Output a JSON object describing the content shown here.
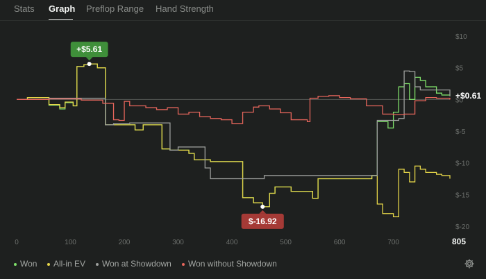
{
  "tabs": [
    {
      "label": "Stats"
    },
    {
      "label": "Graph"
    },
    {
      "label": "Preflop Range"
    },
    {
      "label": "Hand Strength"
    }
  ],
  "active_tab": "Graph",
  "legend": [
    {
      "label": "Won",
      "color": "#7fe06a"
    },
    {
      "label": "All-in EV",
      "color": "#e6d649"
    },
    {
      "label": "Won at Showdown",
      "color": "#9ea09e"
    },
    {
      "label": "Won without Showdown",
      "color": "#e8665c"
    }
  ],
  "settings_icon": "gear-icon",
  "chart_data": {
    "type": "line",
    "x_ticks": [
      0,
      100,
      200,
      300,
      400,
      500,
      600,
      700,
      805
    ],
    "y_ticks": [
      "$10",
      "$5",
      "$0",
      "$-5",
      "$-10",
      "$-15",
      "$-20"
    ],
    "xlim": [
      0,
      805
    ],
    "ylim": [
      -20,
      10
    ],
    "grid": false,
    "legend_position": "bottom",
    "last_x_label": "805",
    "current_value_label": "+$0.61",
    "annotations": [
      {
        "text": "+$5.61",
        "x": 135,
        "y": 5.61,
        "color": "#3f8f3a"
      },
      {
        "text": "$-16.92",
        "x": 457,
        "y": -16.92,
        "color": "#a53a36"
      }
    ],
    "series": [
      {
        "name": "Won",
        "color": "#7fe06a",
        "x": [
          0,
          20,
          60,
          80,
          90,
          105,
          112,
          125,
          135,
          150,
          165,
          220,
          235,
          270,
          285,
          320,
          330,
          360,
          420,
          440,
          457,
          470,
          480,
          510,
          550,
          560,
          660,
          670,
          690,
          700,
          710,
          720,
          730,
          740,
          750,
          760,
          780,
          790,
          805
        ],
        "y": [
          0,
          0.3,
          -0.9,
          -1.5,
          -0.5,
          -1.0,
          5.2,
          5.5,
          5.61,
          5.0,
          -4.0,
          -4.8,
          -4.0,
          -7.8,
          -8.0,
          -8.5,
          -9.5,
          -9.8,
          -15.5,
          -16.3,
          -16.92,
          -14.8,
          -13.8,
          -14.5,
          -15.6,
          -12.5,
          -12.0,
          -3.5,
          -4.5,
          -2.0,
          2.0,
          2.5,
          0,
          3.5,
          3.0,
          2.0,
          1.0,
          0.7,
          0.61
        ]
      },
      {
        "name": "All-in EV",
        "color": "#e6d649",
        "x": [
          0,
          20,
          60,
          80,
          90,
          105,
          112,
          125,
          135,
          150,
          165,
          220,
          235,
          270,
          285,
          320,
          330,
          360,
          420,
          440,
          457,
          470,
          480,
          510,
          550,
          560,
          660,
          670,
          680,
          700,
          710,
          720,
          730,
          740,
          750,
          760,
          780,
          790,
          805
        ],
        "y": [
          0,
          0.3,
          -0.8,
          -1.3,
          -0.4,
          -1.0,
          5.2,
          5.5,
          5.61,
          5.0,
          -4.0,
          -4.8,
          -4.0,
          -7.8,
          -8.0,
          -8.5,
          -9.5,
          -9.8,
          -15.5,
          -16.3,
          -16.92,
          -14.8,
          -13.8,
          -14.5,
          -15.6,
          -12.5,
          -12.0,
          -16.5,
          -18.0,
          -18.5,
          -11.0,
          -11.5,
          -13.0,
          -10.5,
          -11.0,
          -11.5,
          -11.8,
          -12.0,
          -12.5
        ]
      },
      {
        "name": "Won at Showdown",
        "color": "#9ea09e",
        "x": [
          0,
          60,
          112,
          150,
          165,
          180,
          200,
          210,
          270,
          285,
          300,
          320,
          340,
          350,
          360,
          420,
          430,
          440,
          455,
          460,
          500,
          560,
          600,
          660,
          670,
          710,
          720,
          730,
          740,
          750,
          805
        ],
        "y": [
          0,
          0.2,
          0.2,
          0.2,
          -4.0,
          -3.8,
          -3.8,
          -3.7,
          -3.7,
          -8.0,
          -7.5,
          -7.5,
          -7.5,
          -10.8,
          -12.5,
          -12.5,
          -12.5,
          -12.5,
          -12.5,
          -12.0,
          -12.0,
          -12.0,
          -12.0,
          -12.0,
          -3.3,
          -3.0,
          4.5,
          4.4,
          2.0,
          1.5,
          0.5
        ]
      },
      {
        "name": "Won without Showdown",
        "color": "#e8665c",
        "x": [
          0,
          60,
          120,
          160,
          180,
          190,
          200,
          210,
          240,
          260,
          280,
          300,
          320,
          340,
          360,
          380,
          400,
          420,
          440,
          450,
          470,
          490,
          510,
          540,
          545,
          560,
          580,
          600,
          620,
          650,
          680,
          700,
          720,
          740,
          760,
          780,
          805
        ],
        "y": [
          0,
          0.1,
          -0.1,
          -0.6,
          -3.2,
          -3.3,
          -0.3,
          -1.0,
          -1.3,
          -1.6,
          -1.3,
          -2.3,
          -2.0,
          -2.7,
          -3.0,
          -3.2,
          -3.8,
          -2.0,
          -1.2,
          -1.0,
          -1.5,
          -2.1,
          -3.2,
          -3.5,
          0.2,
          0.5,
          0.6,
          0.3,
          0.1,
          -1.0,
          -2.3,
          -2.4,
          -2.3,
          -0.2,
          0.3,
          0.2,
          0.0
        ]
      }
    ]
  }
}
